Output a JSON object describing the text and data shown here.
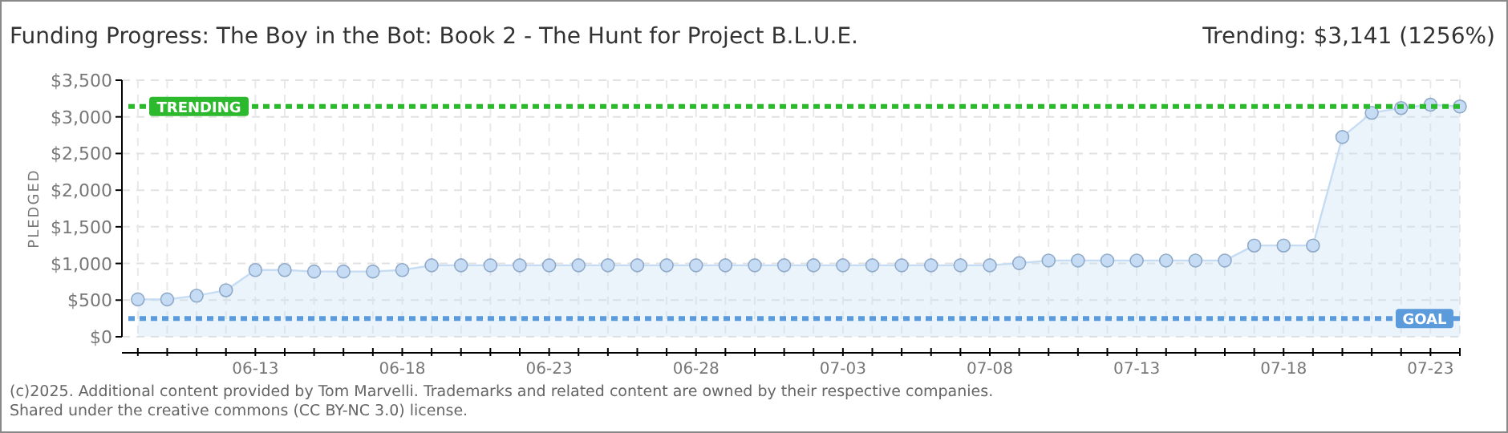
{
  "chart_data": {
    "type": "area",
    "title": "Funding Progress: The Boy in the Bot: Book 2 - The Hunt for Project B.L.U.E.",
    "subtitle": "Trending:  $3,141 (1256%)",
    "ylabel": "PLEDGED",
    "x": [
      "2025-06-09",
      "2025-06-10",
      "2025-06-11",
      "2025-06-12",
      "2025-06-13",
      "2025-06-14",
      "2025-06-15",
      "2025-06-16",
      "2025-06-17",
      "2025-06-18",
      "2025-06-19",
      "2025-06-20",
      "2025-06-21",
      "2025-06-22",
      "2025-06-23",
      "2025-06-24",
      "2025-06-25",
      "2025-06-26",
      "2025-06-27",
      "2025-06-28",
      "2025-06-29",
      "2025-06-30",
      "2025-07-01",
      "2025-07-02",
      "2025-07-03",
      "2025-07-04",
      "2025-07-05",
      "2025-07-06",
      "2025-07-07",
      "2025-07-08",
      "2025-07-09",
      "2025-07-10",
      "2025-07-11",
      "2025-07-12",
      "2025-07-13",
      "2025-07-14",
      "2025-07-15",
      "2025-07-16",
      "2025-07-17",
      "2025-07-18",
      "2025-07-19",
      "2025-07-20",
      "2025-07-21",
      "2025-07-22",
      "2025-07-23",
      "2025-07-24"
    ],
    "series": [
      {
        "color": "#c6dcf4",
        "values": [
          510,
          510,
          560,
          635,
          910,
          910,
          890,
          890,
          890,
          910,
          975,
          975,
          975,
          975,
          975,
          975,
          975,
          975,
          975,
          975,
          975,
          975,
          975,
          975,
          975,
          975,
          975,
          975,
          975,
          975,
          1005,
          1040,
          1040,
          1040,
          1040,
          1040,
          1040,
          1040,
          1245,
          1245,
          1245,
          2725,
          3055,
          3120,
          3165,
          3141
        ]
      }
    ],
    "xlim": [
      "2025-06-08T11:00",
      "2025-07-24T00:00"
    ],
    "xticks": [
      {
        "value": "2025-06-13",
        "label": "06-13"
      },
      {
        "value": "2025-06-18",
        "label": "06-18"
      },
      {
        "value": "2025-06-23",
        "label": "06-23"
      },
      {
        "value": "2025-06-28",
        "label": "06-28"
      },
      {
        "value": "2025-07-03",
        "label": "07-03"
      },
      {
        "value": "2025-07-08",
        "label": "07-08"
      },
      {
        "value": "2025-07-13",
        "label": "07-13"
      },
      {
        "value": "2025-07-18",
        "label": "07-18"
      },
      {
        "value": "2025-07-23",
        "label": "07-23"
      }
    ],
    "ylim": [
      0,
      3500
    ],
    "yticks": [
      {
        "value": 0,
        "label": "$0"
      },
      {
        "value": 500,
        "label": "$500"
      },
      {
        "value": 1000,
        "label": "$1,000"
      },
      {
        "value": 1500,
        "label": "$1,500"
      },
      {
        "value": 2000,
        "label": "$2,000"
      },
      {
        "value": 2500,
        "label": "$2,500"
      },
      {
        "value": 3000,
        "label": "$3,000"
      },
      {
        "value": 3500,
        "label": "$3,500"
      }
    ],
    "grid": true,
    "marker": "circle",
    "ref_lines": [
      {
        "axis": "y",
        "value": 3141,
        "label": "TRENDING",
        "color": "#2db92d",
        "line_style": "dashed"
      },
      {
        "axis": "y",
        "value": 250,
        "label": "GOAL",
        "color": "#5b9bdc",
        "line_style": "dashed"
      }
    ],
    "annotations": [
      "(c)2025. Additional content provided by Tom Marvelli. Trademarks and related content are owned by their respective companies.",
      "Shared under the creative commons (CC BY-NC 3.0) license."
    ]
  }
}
